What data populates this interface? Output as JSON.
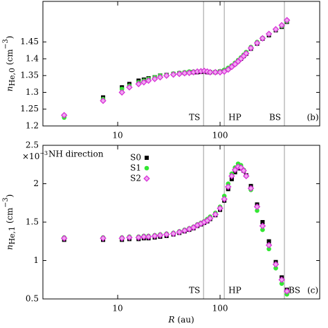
{
  "chart_data": [
    {
      "type": "scatter",
      "xlog": true,
      "xlim": [
        1.86,
        940
      ],
      "xticks": [
        10,
        100
      ],
      "ylim": [
        1.2,
        1.571
      ],
      "yticks": [
        1.2,
        1.25,
        1.3,
        1.35,
        1.4,
        1.45
      ],
      "y_label": {
        "symbol": "n",
        "subscript": "He,0",
        "unit": "(cm",
        "exp": "−3",
        "close": ")"
      },
      "panel_label": "(b)",
      "vlines": [
        {
          "value": 69,
          "label": "TS"
        },
        {
          "value": 110,
          "label": "HP"
        },
        {
          "value": 425,
          "label": "BS"
        }
      ],
      "x": [
        3,
        7.2,
        11,
        13,
        16,
        18,
        20,
        23,
        26,
        30,
        35,
        40,
        45,
        50,
        55,
        60,
        65,
        70,
        75,
        80,
        90,
        100,
        110,
        120,
        130,
        140,
        150,
        160,
        170,
        180,
        200,
        230,
        260,
        300,
        350,
        400,
        450
      ],
      "series": [
        {
          "name": "S0",
          "color": "#000000",
          "marker": "square",
          "values": [
            1.23,
            1.285,
            1.315,
            1.325,
            1.335,
            1.338,
            1.342,
            1.345,
            1.35,
            1.352,
            1.355,
            1.357,
            1.358,
            1.36,
            1.36,
            1.36,
            1.361,
            1.362,
            1.36,
            1.36,
            1.36,
            1.362,
            1.365,
            1.37,
            1.378,
            1.385,
            1.393,
            1.4,
            1.408,
            1.415,
            1.43,
            1.445,
            1.46,
            1.47,
            1.485,
            1.495,
            1.51
          ]
        },
        {
          "name": "S1",
          "color": "#33e633",
          "marker": "circle",
          "values": [
            1.225,
            1.28,
            1.31,
            1.32,
            1.33,
            1.335,
            1.34,
            1.345,
            1.35,
            1.352,
            1.356,
            1.358,
            1.36,
            1.362,
            1.362,
            1.362,
            1.363,
            1.363,
            1.362,
            1.361,
            1.361,
            1.363,
            1.367,
            1.373,
            1.38,
            1.388,
            1.396,
            1.404,
            1.412,
            1.42,
            1.435,
            1.45,
            1.462,
            1.473,
            1.487,
            1.497,
            1.512
          ]
        },
        {
          "name": "S2",
          "color": "#d633d6",
          "marker": "diamond",
          "values": [
            1.232,
            1.275,
            1.3,
            1.315,
            1.325,
            1.33,
            1.335,
            1.34,
            1.345,
            1.35,
            1.353,
            1.355,
            1.357,
            1.358,
            1.36,
            1.362,
            1.363,
            1.364,
            1.362,
            1.36,
            1.36,
            1.36,
            1.362,
            1.368,
            1.376,
            1.384,
            1.392,
            1.4,
            1.408,
            1.416,
            1.432,
            1.447,
            1.461,
            1.474,
            1.488,
            1.5,
            1.515
          ]
        }
      ]
    },
    {
      "type": "scatter",
      "xlog": true,
      "xlim": [
        1.86,
        940
      ],
      "xticks": [
        10,
        100
      ],
      "ylim": [
        0.5,
        2.5
      ],
      "yticks": [
        0.5,
        1,
        1.5,
        2,
        2.5
      ],
      "x_label": {
        "symbol": "R",
        "unit": "(au)"
      },
      "y_label": {
        "symbol": "n",
        "subscript": "He,1",
        "unit": "(cm",
        "exp": "−3",
        "close": ")"
      },
      "y_multiplier": {
        "base": "×10",
        "exp": "−3"
      },
      "legend_title": "NH direction",
      "panel_label": "(c)",
      "vlines": [
        {
          "value": 69,
          "label": "TS"
        },
        {
          "value": 110,
          "label": "HP"
        },
        {
          "value": 425,
          "label": "BS"
        }
      ],
      "x": [
        3,
        7.2,
        11,
        13,
        16,
        18,
        20,
        23,
        26,
        30,
        35,
        40,
        45,
        50,
        55,
        60,
        65,
        70,
        75,
        80,
        90,
        100,
        110,
        120,
        130,
        140,
        150,
        160,
        170,
        180,
        200,
        230,
        260,
        300,
        350,
        400,
        450
      ],
      "series": [
        {
          "name": "S0",
          "color": "#000000",
          "marker": "square",
          "values": [
            1.27,
            1.27,
            1.27,
            1.28,
            1.28,
            1.29,
            1.29,
            1.3,
            1.31,
            1.32,
            1.34,
            1.36,
            1.38,
            1.4,
            1.42,
            1.45,
            1.47,
            1.49,
            1.51,
            1.54,
            1.59,
            1.66,
            1.78,
            1.93,
            2.06,
            2.15,
            2.2,
            2.2,
            2.17,
            2.11,
            1.97,
            1.73,
            1.5,
            1.25,
            0.98,
            0.78,
            0.62
          ]
        },
        {
          "name": "S1",
          "color": "#33e633",
          "marker": "circle",
          "values": [
            1.3,
            1.3,
            1.3,
            1.31,
            1.31,
            1.32,
            1.32,
            1.33,
            1.34,
            1.35,
            1.36,
            1.38,
            1.4,
            1.42,
            1.44,
            1.47,
            1.49,
            1.51,
            1.54,
            1.57,
            1.62,
            1.7,
            1.84,
            2.0,
            2.13,
            2.21,
            2.26,
            2.24,
            2.18,
            2.1,
            1.92,
            1.65,
            1.4,
            1.15,
            0.9,
            0.7,
            0.56
          ]
        },
        {
          "name": "S2",
          "color": "#d633d6",
          "marker": "diamond",
          "values": [
            1.29,
            1.29,
            1.29,
            1.3,
            1.3,
            1.31,
            1.31,
            1.32,
            1.33,
            1.34,
            1.35,
            1.37,
            1.39,
            1.41,
            1.43,
            1.46,
            1.48,
            1.5,
            1.52,
            1.55,
            1.6,
            1.68,
            1.8,
            1.96,
            2.1,
            2.18,
            2.22,
            2.21,
            2.17,
            2.1,
            1.94,
            1.7,
            1.45,
            1.2,
            0.95,
            0.75,
            0.6
          ]
        }
      ]
    }
  ]
}
